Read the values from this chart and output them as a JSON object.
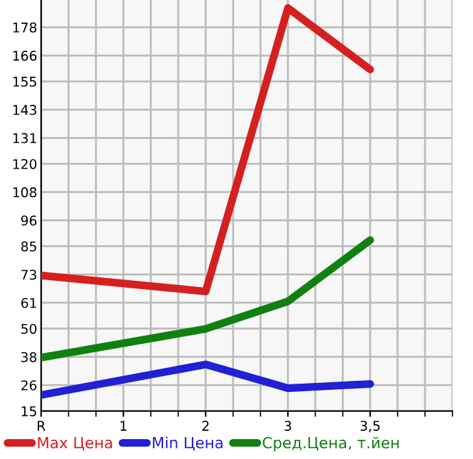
{
  "chart_data": {
    "type": "line",
    "categories": [
      "R",
      "1",
      "2",
      "3",
      "3,5"
    ],
    "series": [
      {
        "name": "Max Цена",
        "color": "#d42020",
        "values": [
          72.6,
          null,
          65.8,
          186.2,
          160.1
        ]
      },
      {
        "name": "Min Цена",
        "color": "#2020d4",
        "values": [
          21.8,
          null,
          34.8,
          24.7,
          26.5
        ]
      },
      {
        "name": "Сред.Цена, т.йен",
        "color": "#108010",
        "values": [
          37.7,
          null,
          49.9,
          61.6,
          87.6
        ]
      }
    ],
    "ylim": [
      15,
      189.6
    ],
    "yticks": [
      15,
      26,
      38,
      50,
      61,
      73,
      85,
      96,
      108,
      120,
      131,
      143,
      155,
      166,
      178
    ],
    "grid": true,
    "legend": "bottom",
    "marker": "none",
    "line_style": "solid"
  }
}
